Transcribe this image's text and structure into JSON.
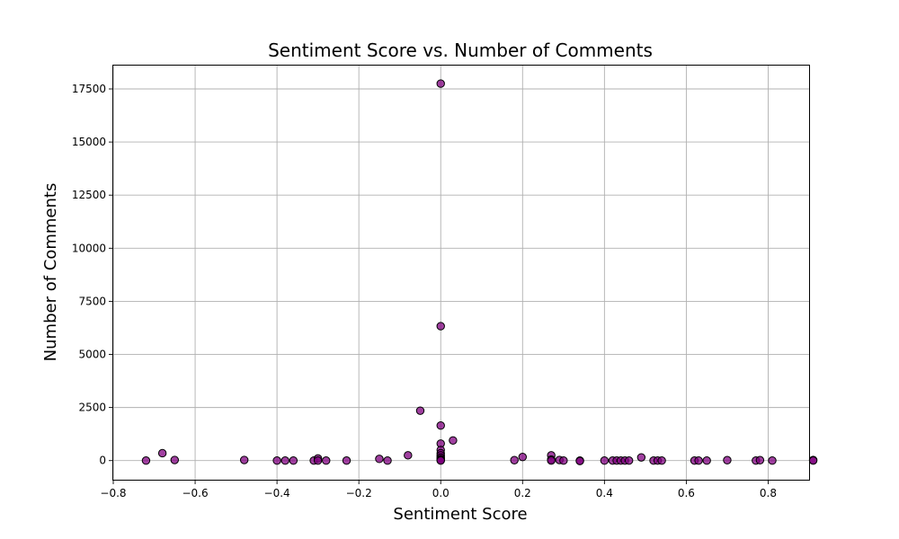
{
  "chart_data": {
    "type": "scatter",
    "title": "Sentiment Score vs. Number of Comments",
    "xlabel": "Sentiment Score",
    "ylabel": "Number of Comments",
    "xlim": [
      -0.8,
      0.9
    ],
    "ylim": [
      -900,
      18600
    ],
    "xticks": [
      -0.8,
      -0.6,
      -0.4,
      -0.2,
      0.0,
      0.2,
      0.4,
      0.6,
      0.8
    ],
    "xtick_labels": [
      "−0.8",
      "−0.6",
      "−0.4",
      "−0.2",
      "0.0",
      "0.2",
      "0.4",
      "0.6",
      "0.8"
    ],
    "yticks": [
      0,
      2500,
      5000,
      7500,
      10000,
      12500,
      15000,
      17500
    ],
    "ytick_labels": [
      "0",
      "2500",
      "5000",
      "7500",
      "10000",
      "12500",
      "15000",
      "17500"
    ],
    "grid": true,
    "point_color": "#800080",
    "points": [
      {
        "x": -0.72,
        "y": 0
      },
      {
        "x": -0.68,
        "y": 350
      },
      {
        "x": -0.65,
        "y": 30
      },
      {
        "x": -0.48,
        "y": 30
      },
      {
        "x": -0.4,
        "y": 0
      },
      {
        "x": -0.38,
        "y": 0
      },
      {
        "x": -0.36,
        "y": 0
      },
      {
        "x": -0.31,
        "y": 0
      },
      {
        "x": -0.3,
        "y": 100
      },
      {
        "x": -0.3,
        "y": 0
      },
      {
        "x": -0.28,
        "y": 0
      },
      {
        "x": -0.23,
        "y": 0
      },
      {
        "x": -0.15,
        "y": 80
      },
      {
        "x": -0.13,
        "y": 0
      },
      {
        "x": -0.08,
        "y": 250
      },
      {
        "x": -0.05,
        "y": 2350
      },
      {
        "x": 0.0,
        "y": 17750
      },
      {
        "x": 0.0,
        "y": 6330
      },
      {
        "x": 0.0,
        "y": 1650
      },
      {
        "x": 0.0,
        "y": 800
      },
      {
        "x": 0.0,
        "y": 500
      },
      {
        "x": 0.0,
        "y": 350
      },
      {
        "x": 0.0,
        "y": 250
      },
      {
        "x": 0.0,
        "y": 150
      },
      {
        "x": 0.0,
        "y": 80
      },
      {
        "x": 0.0,
        "y": 30
      },
      {
        "x": 0.0,
        "y": 0
      },
      {
        "x": 0.03,
        "y": 950
      },
      {
        "x": 0.18,
        "y": 20
      },
      {
        "x": 0.2,
        "y": 170
      },
      {
        "x": 0.27,
        "y": 250
      },
      {
        "x": 0.27,
        "y": 50
      },
      {
        "x": 0.27,
        "y": 0
      },
      {
        "x": 0.29,
        "y": 30
      },
      {
        "x": 0.3,
        "y": 0
      },
      {
        "x": 0.34,
        "y": 0
      },
      {
        "x": 0.34,
        "y": -20
      },
      {
        "x": 0.4,
        "y": 0
      },
      {
        "x": 0.42,
        "y": 0
      },
      {
        "x": 0.43,
        "y": 0
      },
      {
        "x": 0.44,
        "y": 0
      },
      {
        "x": 0.45,
        "y": 0
      },
      {
        "x": 0.46,
        "y": 0
      },
      {
        "x": 0.49,
        "y": 150
      },
      {
        "x": 0.52,
        "y": 0
      },
      {
        "x": 0.53,
        "y": 0
      },
      {
        "x": 0.54,
        "y": 0
      },
      {
        "x": 0.62,
        "y": 0
      },
      {
        "x": 0.63,
        "y": 0
      },
      {
        "x": 0.65,
        "y": 0
      },
      {
        "x": 0.7,
        "y": 20
      },
      {
        "x": 0.77,
        "y": 0
      },
      {
        "x": 0.78,
        "y": 20
      },
      {
        "x": 0.81,
        "y": 0
      },
      {
        "x": 0.91,
        "y": 30
      },
      {
        "x": 0.91,
        "y": 0
      }
    ]
  }
}
